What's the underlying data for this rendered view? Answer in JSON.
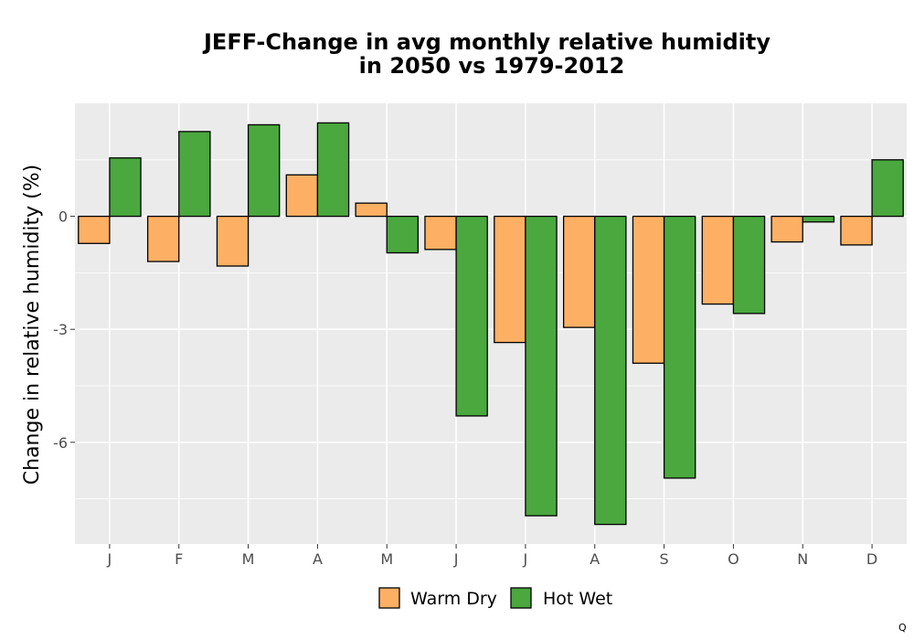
{
  "chart_data": {
    "type": "bar",
    "title_lines": [
      "JEFF-Change in avg monthly relative humidity",
      "in 2050 vs 1979-2012"
    ],
    "xlabel": "",
    "ylabel": "Change in relative humidity (%)",
    "categories": [
      "J",
      "F",
      "M",
      "A",
      "M",
      "J",
      "J",
      "A",
      "S",
      "O",
      "N",
      "D"
    ],
    "series": [
      {
        "name": "Warm Dry",
        "color": "#FDB064",
        "values": [
          -0.72,
          -1.2,
          -1.32,
          1.1,
          0.35,
          -0.88,
          -3.35,
          -2.95,
          -3.9,
          -2.33,
          -0.68,
          -0.76
        ]
      },
      {
        "name": "Hot Wet",
        "color": "#4AA83F",
        "values": [
          1.55,
          2.25,
          2.43,
          2.48,
          -0.97,
          -5.3,
          -7.95,
          -8.18,
          -6.95,
          -2.58,
          -0.15,
          1.5
        ]
      }
    ],
    "ylim": [
      -8.7,
      3.0
    ],
    "yticks": [
      0,
      -3,
      -6
    ],
    "ytick_labels": [
      "0",
      "-3",
      "-6"
    ],
    "grid": true,
    "legend_position": "bottom",
    "background_color": "#EBEBEB",
    "grid_color": "#FFFFFF"
  },
  "corner_mark": "Q"
}
